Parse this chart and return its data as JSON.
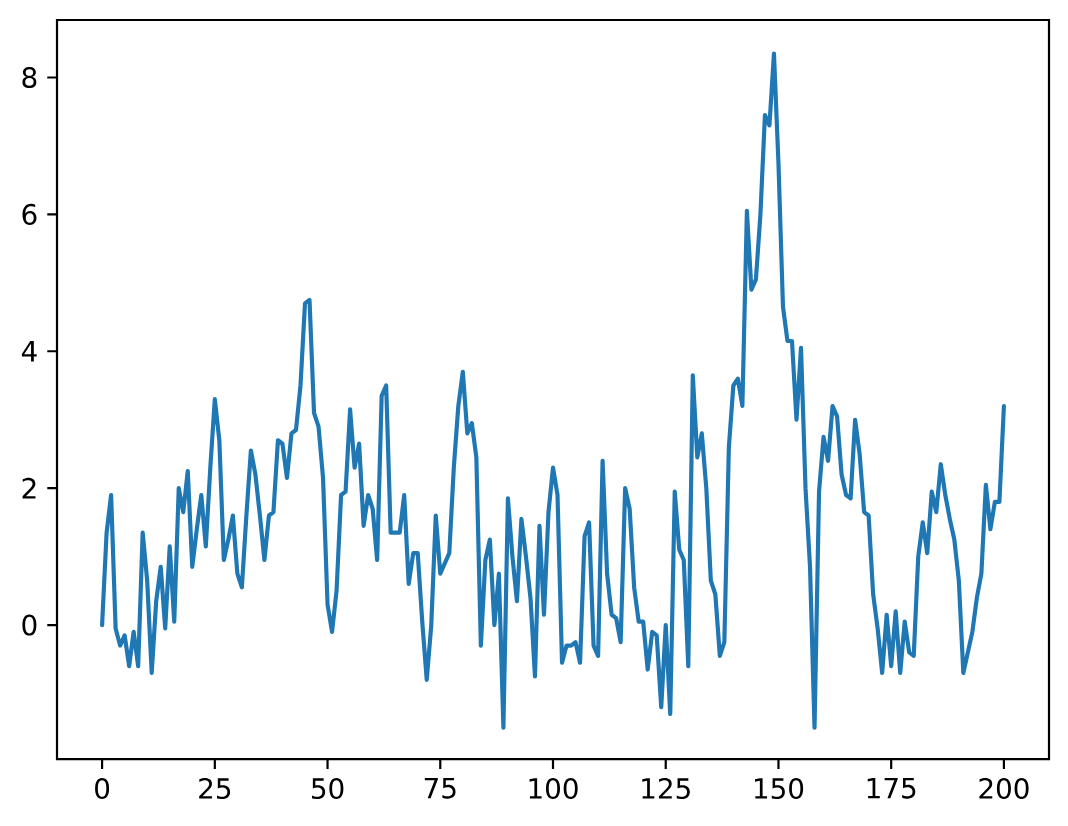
{
  "chart_data": {
    "type": "line",
    "color": "#1f77b4",
    "x": [
      0,
      1,
      2,
      3,
      4,
      5,
      6,
      7,
      8,
      9,
      10,
      11,
      12,
      13,
      14,
      15,
      16,
      17,
      18,
      19,
      20,
      21,
      22,
      23,
      24,
      25,
      26,
      27,
      28,
      29,
      30,
      31,
      32,
      33,
      34,
      35,
      36,
      37,
      38,
      39,
      40,
      41,
      42,
      43,
      44,
      45,
      46,
      47,
      48,
      49,
      50,
      51,
      52,
      53,
      54,
      55,
      56,
      57,
      58,
      59,
      60,
      61,
      62,
      63,
      64,
      65,
      66,
      67,
      68,
      69,
      70,
      71,
      72,
      73,
      74,
      75,
      76,
      77,
      78,
      79,
      80,
      81,
      82,
      83,
      84,
      85,
      86,
      87,
      88,
      89,
      90,
      91,
      92,
      93,
      94,
      95,
      96,
      97,
      98,
      99,
      100,
      101,
      102,
      103,
      104,
      105,
      106,
      107,
      108,
      109,
      110,
      111,
      112,
      113,
      114,
      115,
      116,
      117,
      118,
      119,
      120,
      121,
      122,
      123,
      124,
      125,
      126,
      127,
      128,
      129,
      130,
      131,
      132,
      133,
      134,
      135,
      136,
      137,
      138,
      139,
      140,
      141,
      142,
      143,
      144,
      145,
      146,
      147,
      148,
      149,
      150,
      151,
      152,
      153,
      154,
      155,
      156,
      157,
      158,
      159,
      160,
      161,
      162,
      163,
      164,
      165,
      166,
      167,
      168,
      169,
      170,
      171,
      172,
      173,
      174,
      175,
      176,
      177,
      178,
      179,
      180,
      181,
      182,
      183,
      184,
      185,
      186,
      187,
      188,
      189,
      190,
      191,
      192,
      193,
      194,
      195,
      196,
      197,
      198,
      199,
      200
    ],
    "values": [
      0.0,
      1.35,
      1.9,
      -0.05,
      -0.3,
      -0.15,
      -0.6,
      -0.1,
      -0.6,
      1.35,
      0.65,
      -0.7,
      0.35,
      0.85,
      -0.05,
      1.15,
      0.05,
      2.0,
      1.65,
      2.25,
      0.85,
      1.4,
      1.9,
      1.15,
      2.3,
      3.3,
      2.7,
      0.95,
      1.25,
      1.6,
      0.75,
      0.55,
      1.6,
      2.55,
      2.2,
      1.6,
      0.95,
      1.6,
      1.65,
      2.7,
      2.65,
      2.15,
      2.8,
      2.85,
      3.5,
      4.7,
      4.75,
      3.1,
      2.9,
      2.15,
      0.3,
      -0.1,
      0.5,
      1.9,
      1.95,
      3.15,
      2.3,
      2.65,
      1.45,
      1.9,
      1.7,
      0.95,
      3.35,
      3.5,
      1.35,
      1.35,
      1.35,
      1.9,
      0.6,
      1.05,
      1.05,
      0.05,
      -0.8,
      0.0,
      1.6,
      0.75,
      0.9,
      1.05,
      2.3,
      3.2,
      3.7,
      2.8,
      2.95,
      2.45,
      -0.3,
      0.95,
      1.25,
      0.0,
      0.75,
      -1.5,
      1.85,
      1.0,
      0.35,
      1.55,
      1.0,
      0.4,
      -0.75,
      1.45,
      0.15,
      1.65,
      2.3,
      1.9,
      -0.55,
      -0.3,
      -0.3,
      -0.25,
      -0.55,
      1.3,
      1.5,
      -0.3,
      -0.45,
      2.4,
      0.75,
      0.15,
      0.1,
      -0.25,
      2.0,
      1.7,
      0.55,
      0.05,
      0.05,
      -0.65,
      -0.1,
      -0.15,
      -1.2,
      0.0,
      -1.3,
      1.95,
      1.1,
      0.95,
      -0.6,
      3.65,
      2.45,
      2.8,
      2.0,
      0.65,
      0.45,
      -0.45,
      -0.25,
      2.6,
      3.5,
      3.6,
      3.2,
      6.05,
      4.9,
      5.05,
      6.0,
      7.45,
      7.3,
      8.35,
      6.75,
      4.65,
      4.15,
      4.15,
      3.0,
      4.05,
      2.0,
      0.85,
      -1.5,
      1.95,
      2.75,
      2.4,
      3.2,
      3.05,
      2.2,
      1.9,
      1.85,
      3.0,
      2.5,
      1.65,
      1.6,
      0.45,
      -0.05,
      -0.7,
      0.15,
      -0.6,
      0.2,
      -0.7,
      0.05,
      -0.4,
      -0.45,
      1.0,
      1.5,
      1.05,
      1.95,
      1.65,
      2.35,
      1.9,
      1.55,
      1.25,
      0.65,
      -0.7,
      -0.4,
      -0.1,
      0.4,
      0.75,
      2.05,
      1.4,
      1.8,
      1.8,
      3.2
    ],
    "xlim": [
      -10,
      210
    ],
    "ylim": [
      -1.96,
      8.84
    ],
    "xticks": [
      0,
      25,
      50,
      75,
      100,
      125,
      150,
      175,
      200
    ],
    "yticks": [
      0,
      2,
      4,
      6,
      8
    ]
  }
}
